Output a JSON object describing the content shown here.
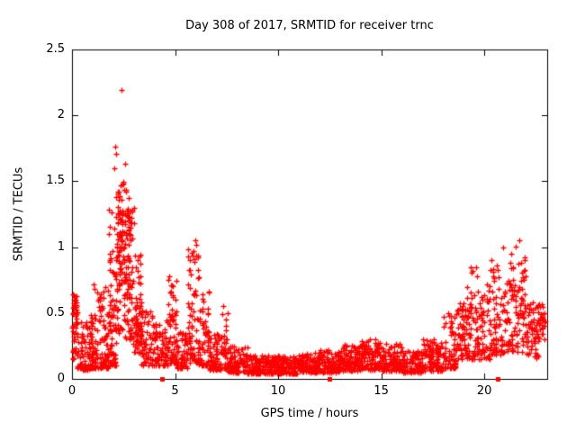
{
  "chart_data": {
    "type": "scatter",
    "title": "Day 308 of 2017, SRMTID for receiver trnc",
    "xlabel": "GPS time / hours",
    "ylabel": "SRMTID / TECUs",
    "xlim": [
      0,
      23.05
    ],
    "ylim": [
      0,
      2.5
    ],
    "xticks": [
      0,
      5,
      10,
      15,
      20
    ],
    "xtick_labels": [
      "0",
      "5",
      "10",
      "15",
      "20"
    ],
    "yticks": [
      0,
      0.5,
      1,
      1.5,
      2,
      2.5
    ],
    "ytick_labels": [
      "0",
      "0.5",
      "1",
      "1.5",
      "2",
      "2.5"
    ],
    "grid": false,
    "legend": "none",
    "marker": "plus",
    "marker_color": "#ff0000",
    "axis_color": "#000000",
    "background": "#ffffff",
    "seed": 3082017,
    "bin_fields": [
      "x0",
      "x1",
      "n",
      "y_low",
      "y_high",
      "bias"
    ],
    "scatter_bins": [
      [
        0.02,
        0.25,
        55,
        0.15,
        0.65,
        1.1
      ],
      [
        0.25,
        0.9,
        70,
        0.07,
        0.45,
        2.0
      ],
      [
        0.9,
        1.2,
        60,
        0.08,
        0.5,
        2.2
      ],
      [
        1.2,
        1.8,
        80,
        0.08,
        0.7,
        2.4
      ],
      [
        1.8,
        2.15,
        70,
        0.1,
        1.3,
        2.0
      ],
      [
        2.15,
        2.55,
        100,
        0.35,
        1.52,
        1.1
      ],
      [
        2.55,
        2.95,
        90,
        0.3,
        1.45,
        1.4
      ],
      [
        2.95,
        3.35,
        70,
        0.2,
        0.95,
        1.6
      ],
      [
        3.35,
        4.2,
        95,
        0.1,
        0.52,
        1.7
      ],
      [
        4.2,
        4.65,
        50,
        0.1,
        0.45,
        1.6
      ],
      [
        4.65,
        5.05,
        55,
        0.12,
        0.78,
        1.5
      ],
      [
        5.05,
        5.6,
        60,
        0.08,
        0.38,
        1.8
      ],
      [
        5.6,
        6.15,
        75,
        0.12,
        1.0,
        1.8
      ],
      [
        6.15,
        6.65,
        65,
        0.1,
        0.7,
        2.2
      ],
      [
        6.65,
        7.25,
        70,
        0.07,
        0.35,
        1.8
      ],
      [
        7.25,
        7.55,
        35,
        0.08,
        0.5,
        1.9
      ],
      [
        7.55,
        8.5,
        110,
        0.05,
        0.25,
        1.8
      ],
      [
        8.5,
        10.0,
        170,
        0.04,
        0.18,
        1.5
      ],
      [
        10.0,
        11.0,
        115,
        0.04,
        0.17,
        1.5
      ],
      [
        11.0,
        12.0,
        115,
        0.05,
        0.2,
        1.5
      ],
      [
        12.0,
        13.0,
        115,
        0.05,
        0.22,
        1.5
      ],
      [
        13.0,
        14.0,
        115,
        0.06,
        0.26,
        1.5
      ],
      [
        14.0,
        15.0,
        115,
        0.07,
        0.3,
        1.6
      ],
      [
        15.0,
        16.0,
        115,
        0.06,
        0.27,
        1.6
      ],
      [
        16.0,
        17.0,
        110,
        0.05,
        0.22,
        1.5
      ],
      [
        17.0,
        18.0,
        110,
        0.06,
        0.3,
        1.7
      ],
      [
        18.0,
        18.65,
        65,
        0.08,
        0.5,
        1.8
      ],
      [
        18.65,
        19.15,
        55,
        0.15,
        0.58,
        1.2
      ],
      [
        19.15,
        19.65,
        55,
        0.15,
        0.85,
        1.7
      ],
      [
        19.65,
        20.25,
        60,
        0.15,
        0.72,
        1.6
      ],
      [
        20.25,
        20.85,
        60,
        0.18,
        0.95,
        1.6
      ],
      [
        20.85,
        21.45,
        60,
        0.2,
        1.0,
        1.5
      ],
      [
        21.45,
        22.05,
        60,
        0.2,
        1.02,
        1.3
      ],
      [
        22.05,
        22.6,
        60,
        0.15,
        0.6,
        1.2
      ],
      [
        22.6,
        22.95,
        35,
        0.28,
        0.58,
        1.0
      ]
    ],
    "peak_points": [
      [
        1.05,
        0.72
      ],
      [
        1.1,
        0.68
      ],
      [
        2.05,
        1.6
      ],
      [
        2.1,
        1.76
      ],
      [
        2.13,
        1.71
      ],
      [
        2.38,
        2.19
      ],
      [
        2.58,
        1.63
      ],
      [
        3.0,
        1.3
      ],
      [
        3.02,
        1.18
      ],
      [
        5.9,
        0.97
      ],
      [
        5.98,
        1.05
      ],
      [
        6.02,
        1.02
      ],
      [
        7.35,
        0.55
      ],
      [
        19.35,
        0.85
      ],
      [
        20.9,
        1.0
      ],
      [
        21.7,
        1.05
      ]
    ],
    "axis_marker_squares": {
      "x": [
        4.35,
        12.5,
        20.65
      ],
      "y": 0,
      "color": "#ff0000"
    }
  }
}
